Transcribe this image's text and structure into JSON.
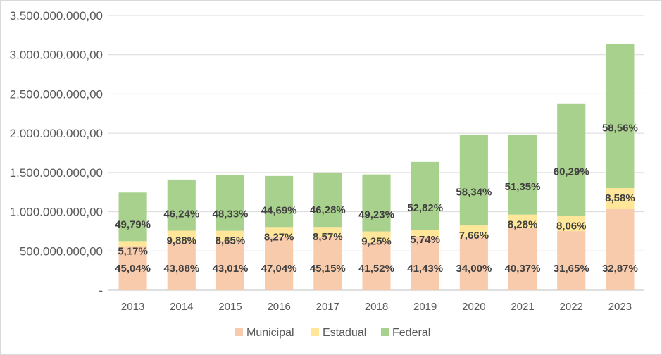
{
  "chart_data": {
    "type": "bar",
    "stacked": true,
    "title": "",
    "xlabel": "",
    "ylabel": "",
    "ylim": [
      0,
      3500000000
    ],
    "yticks": [
      0,
      500000000,
      1000000000,
      1500000000,
      2000000000,
      2500000000,
      3000000000,
      3500000000
    ],
    "ytick_labels": [
      "-",
      "500.000.000,00",
      "1.000.000.000,00",
      "1.500.000.000,00",
      "2.000.000.000,00",
      "2.500.000.000,00",
      "3.000.000.000,00",
      "3.500.000.000,00"
    ],
    "grid": true,
    "legend_position": "bottom",
    "categories": [
      "2013",
      "2014",
      "2015",
      "2016",
      "2017",
      "2018",
      "2019",
      "2020",
      "2021",
      "2022",
      "2023"
    ],
    "totals": [
      1245000000,
      1410000000,
      1465000000,
      1455000000,
      1500000000,
      1475000000,
      1635000000,
      1980000000,
      1980000000,
      2380000000,
      3140000000
    ],
    "series": [
      {
        "name": "Municipal",
        "color": "#f8cbad",
        "shares": [
          45.04,
          43.88,
          43.01,
          47.04,
          45.15,
          41.52,
          41.43,
          34.0,
          40.37,
          31.65,
          32.87
        ],
        "labels": [
          "45,04%",
          "43,88%",
          "43,01%",
          "47,04%",
          "45,15%",
          "41,52%",
          "41,43%",
          "34,00%",
          "40,37%",
          "31,65%",
          "32,87%"
        ]
      },
      {
        "name": "Estadual",
        "color": "#ffe699",
        "shares": [
          5.17,
          9.88,
          8.65,
          8.27,
          8.57,
          9.25,
          5.74,
          7.66,
          8.28,
          8.06,
          8.58
        ],
        "labels": [
          "5,17%",
          "9,88%",
          "8,65%",
          "8,27%",
          "8,57%",
          "9,25%",
          "5,74%",
          "7,66%",
          "8,28%",
          "8,06%",
          "8,58%"
        ]
      },
      {
        "name": "Federal",
        "color": "#a9d18e",
        "shares": [
          49.79,
          46.24,
          48.33,
          44.69,
          46.28,
          49.23,
          52.82,
          58.34,
          51.35,
          60.29,
          58.56
        ],
        "labels": [
          "49,79%",
          "46,24%",
          "48,33%",
          "44,69%",
          "46,28%",
          "49,23%",
          "52,82%",
          "58,34%",
          "51,35%",
          "60,29%",
          "58,56%"
        ]
      }
    ]
  },
  "colors": {
    "grid": "#d9d9d9",
    "axis": "#bfbfbf"
  }
}
